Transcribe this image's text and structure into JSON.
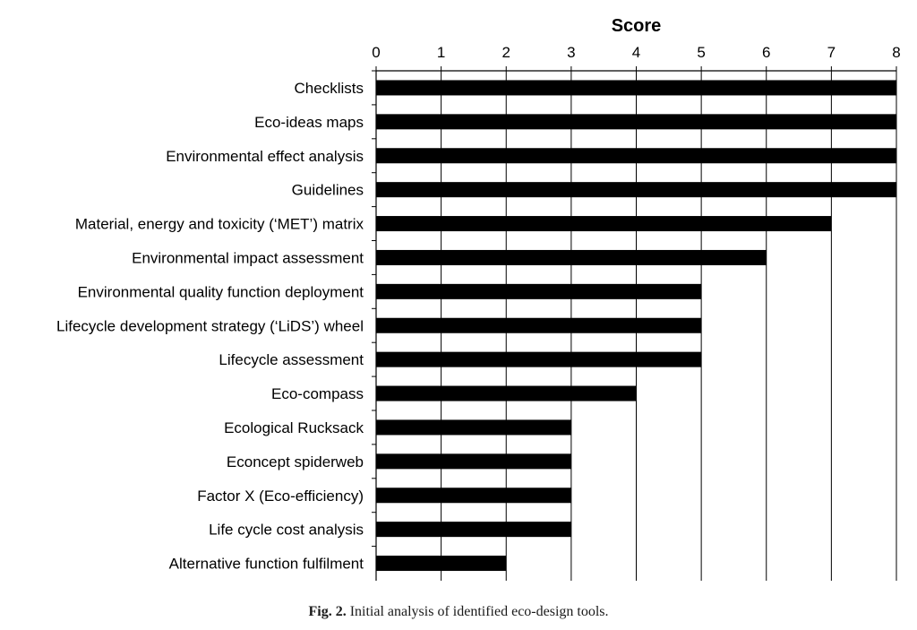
{
  "chart_data": {
    "type": "bar",
    "orientation": "horizontal",
    "xlabel": "Score",
    "xlabel_position": "top",
    "xlim": [
      0,
      8
    ],
    "xticks": [
      0,
      1,
      2,
      3,
      4,
      5,
      6,
      7,
      8
    ],
    "grid": "vertical",
    "bar_color": "#000000",
    "categories": [
      "Checklists",
      "Eco-ideas maps",
      "Environmental effect analysis",
      "Guidelines",
      "Material, energy and toxicity (‘MET’) matrix",
      "Environmental impact assessment",
      "Environmental quality function deployment",
      "Lifecycle development strategy (‘LiDS’) wheel",
      "Lifecycle assessment",
      "Eco-compass",
      "Ecological Rucksack",
      "Econcept spiderweb",
      "Factor X (Eco-efficiency)",
      "Life cycle cost analysis",
      "Alternative function fulfilment"
    ],
    "values": [
      8,
      8,
      8,
      8,
      7,
      6,
      5,
      5,
      5,
      4,
      3,
      3,
      3,
      3,
      2
    ]
  },
  "caption": {
    "label": "Fig. 2.",
    "text": "Initial analysis of identified eco-design tools."
  }
}
